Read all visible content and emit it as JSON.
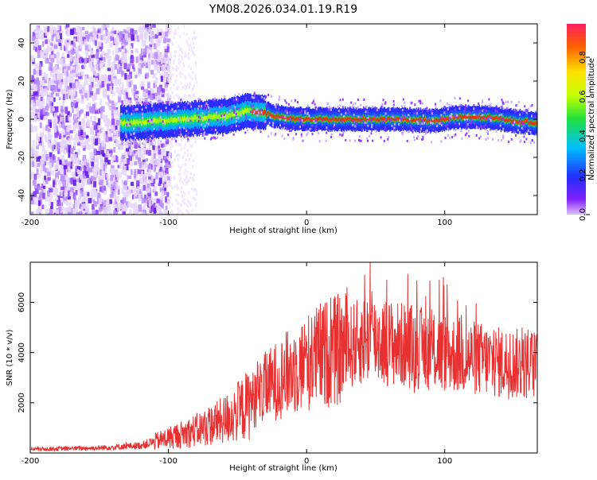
{
  "title": "YM08.2026.034.01.19.R19",
  "chart_data": [
    {
      "type": "heatmap",
      "name": "spectrogram",
      "xlabel": "Height of straight line (km)",
      "ylabel": "Frequency (Hz)",
      "xlim": [
        -200,
        167
      ],
      "ylim": [
        -50,
        50
      ],
      "xticks": [
        -200,
        -100,
        0,
        100
      ],
      "yticks": [
        -40,
        -20,
        0,
        20,
        40
      ],
      "description_of_content": "Noisy scatter below -105 km; narrow signal band near 0 Hz from about -130 km to 167 km",
      "ridge_centerline": [
        {
          "x": -130,
          "y": -2
        },
        {
          "x": -110,
          "y": -1
        },
        {
          "x": -90,
          "y": 0
        },
        {
          "x": -70,
          "y": 1
        },
        {
          "x": -55,
          "y": 2
        },
        {
          "x": -45,
          "y": 4
        },
        {
          "x": -35,
          "y": 4
        },
        {
          "x": -25,
          "y": 2
        },
        {
          "x": -10,
          "y": 0
        },
        {
          "x": 10,
          "y": 0
        },
        {
          "x": 40,
          "y": 0
        },
        {
          "x": 70,
          "y": 0
        },
        {
          "x": 90,
          "y": -1
        },
        {
          "x": 110,
          "y": 1
        },
        {
          "x": 130,
          "y": 1
        },
        {
          "x": 150,
          "y": -1
        },
        {
          "x": 167,
          "y": -2
        }
      ],
      "colorbar": {
        "label": "Normalized spectral amplitude",
        "ticks": [
          0.0,
          0.2,
          0.4,
          0.6,
          0.8
        ],
        "range": [
          0,
          0.97
        ]
      }
    },
    {
      "type": "line",
      "name": "snr",
      "xlabel": "Height of straight line (km)",
      "ylabel": "SNR (10 * v/v)",
      "xlim": [
        -200,
        167
      ],
      "ylim": [
        0,
        7600
      ],
      "xticks": [
        -200,
        -100,
        0,
        100
      ],
      "yticks": [
        2000,
        4000,
        6000
      ],
      "color": "#e83030",
      "envelope": [
        {
          "x": -200,
          "y": 150
        },
        {
          "x": -150,
          "y": 200
        },
        {
          "x": -120,
          "y": 300
        },
        {
          "x": -100,
          "y": 600
        },
        {
          "x": -80,
          "y": 900
        },
        {
          "x": -60,
          "y": 1300
        },
        {
          "x": -45,
          "y": 1800
        },
        {
          "x": -30,
          "y": 2600
        },
        {
          "x": -10,
          "y": 3300
        },
        {
          "x": 10,
          "y": 3900
        },
        {
          "x": 30,
          "y": 4200
        },
        {
          "x": 45,
          "y": 4600
        },
        {
          "x": 60,
          "y": 4400
        },
        {
          "x": 80,
          "y": 4200
        },
        {
          "x": 100,
          "y": 4000
        },
        {
          "x": 120,
          "y": 3800
        },
        {
          "x": 140,
          "y": 3600
        },
        {
          "x": 167,
          "y": 3500
        }
      ],
      "peaks": [
        {
          "x": 42,
          "y": 7100
        },
        {
          "x": 46,
          "y": 7600
        },
        {
          "x": 78,
          "y": 7000
        },
        {
          "x": 96,
          "y": 6900
        },
        {
          "x": 99,
          "y": 7000
        },
        {
          "x": 112,
          "y": 5500
        }
      ],
      "dips": [
        {
          "x": 78,
          "y": 2400
        },
        {
          "x": 98,
          "y": 2600
        }
      ]
    }
  ]
}
